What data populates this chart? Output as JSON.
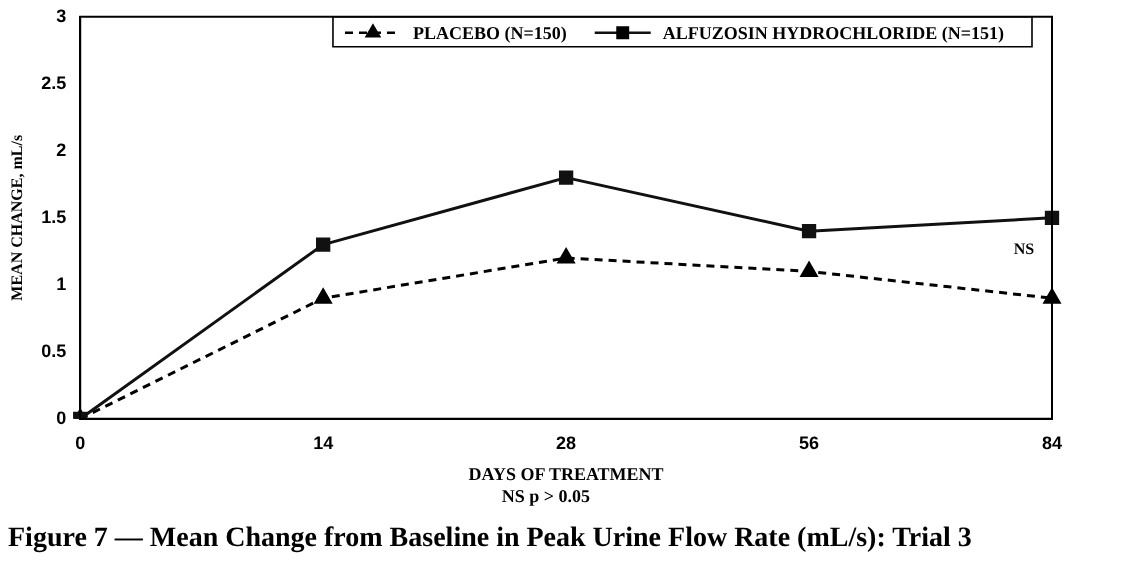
{
  "chart_data": {
    "type": "line",
    "title": "Figure 7 — Mean Change from Baseline in Peak Urine Flow Rate (mL/s): Trial 3",
    "xlabel": "DAYS OF TREATMENT",
    "ylabel": "MEAN CHANGE, mL/s",
    "categories": [
      "0",
      "14",
      "28",
      "56",
      "84"
    ],
    "series": [
      {
        "name": "PLACEBO (N=150)",
        "color": "#000000",
        "marker": "triangle",
        "line_style": "dashed",
        "values": [
          0,
          0.9,
          1.2,
          1.1,
          0.9
        ]
      },
      {
        "name": "ALFUZOSIN HYDROCHLORIDE (N=151)",
        "color": "#111111",
        "marker": "square",
        "line_style": "solid",
        "values": [
          0,
          1.3,
          1.8,
          1.4,
          1.5
        ]
      }
    ],
    "ylim": [
      0,
      3
    ],
    "yticks": [
      0,
      0.5,
      1,
      1.5,
      2,
      2.5,
      3
    ],
    "grid": false,
    "legend": "top right",
    "annotations": [
      "NS",
      "NS p > 0.05"
    ]
  }
}
